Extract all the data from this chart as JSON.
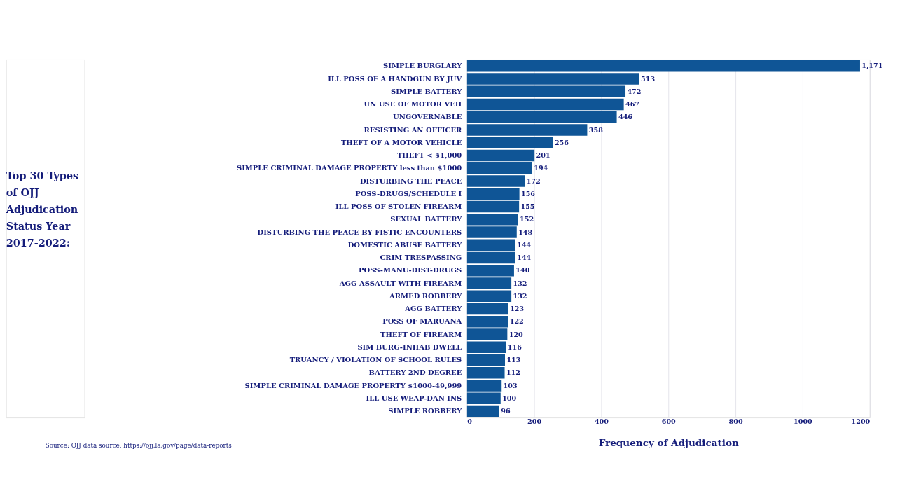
{
  "chart_data": {
    "type": "bar",
    "orientation": "horizontal",
    "title": "Top 30 Types of OJJ Adjudication Status Year 2017-2022:",
    "xlabel": "Frequency of Adjudication",
    "annotations": [
      "Source: OJJ data source, https://ojj.la.gov/page/data-reports"
    ],
    "categories": [
      "SIMPLE BURGLARY",
      "ILL POSS OF A HANDGUN BY JUV",
      "SIMPLE BATTERY",
      "UN USE OF MOTOR VEH",
      "UNGOVERNABLE",
      "RESISTING AN OFFICER",
      "THEFT OF A MOTOR VEHICLE",
      "THEFT < $1,000",
      "SIMPLE CRIMINAL DAMAGE PROPERTY less than $1000",
      "DISTURBING THE PEACE",
      "POSS-DRUGS/SCHEDULE I",
      "ILL POSS OF STOLEN FIREARM",
      "SEXUAL BATTERY",
      "DISTURBING THE PEACE BY FISTIC ENCOUNTERS",
      "DOMESTIC ABUSE BATTERY",
      "CRIM TRESPASSING",
      "POSS-MANU-DIST-DRUGS",
      "AGG ASSAULT WITH FIREARM",
      "ARMED ROBBERY",
      "AGG BATTERY",
      "POSS OF MARUANA",
      "THEFT OF FIREARM",
      "SIM BURG-INHAB DWELL",
      "TRUANCY / VIOLATION OF SCHOOL RULES",
      "BATTERY 2ND DEGREE",
      "SIMPLE CRIMINAL DAMAGE PROPERTY $1000-49,999",
      "ILL USE WEAP-DAN INS",
      "SIMPLE ROBBERY"
    ],
    "values": [
      1171,
      513,
      472,
      467,
      446,
      358,
      256,
      201,
      194,
      172,
      156,
      155,
      152,
      148,
      144,
      144,
      140,
      132,
      132,
      123,
      122,
      120,
      116,
      113,
      112,
      103,
      100,
      96
    ],
    "value_labels": [
      "1,171",
      "513",
      "472",
      "467",
      "446",
      "358",
      "256",
      "201",
      "194",
      "172",
      "156",
      "155",
      "152",
      "148",
      "144",
      "144",
      "140",
      "132",
      "132",
      "123",
      "122",
      "120",
      "116",
      "113",
      "112",
      "103",
      "100",
      "96"
    ],
    "color": "#0f5596",
    "xlim": [
      0,
      1200
    ],
    "xticks": [
      0,
      200,
      400,
      600,
      800,
      1000,
      1200
    ],
    "grid": "x"
  }
}
